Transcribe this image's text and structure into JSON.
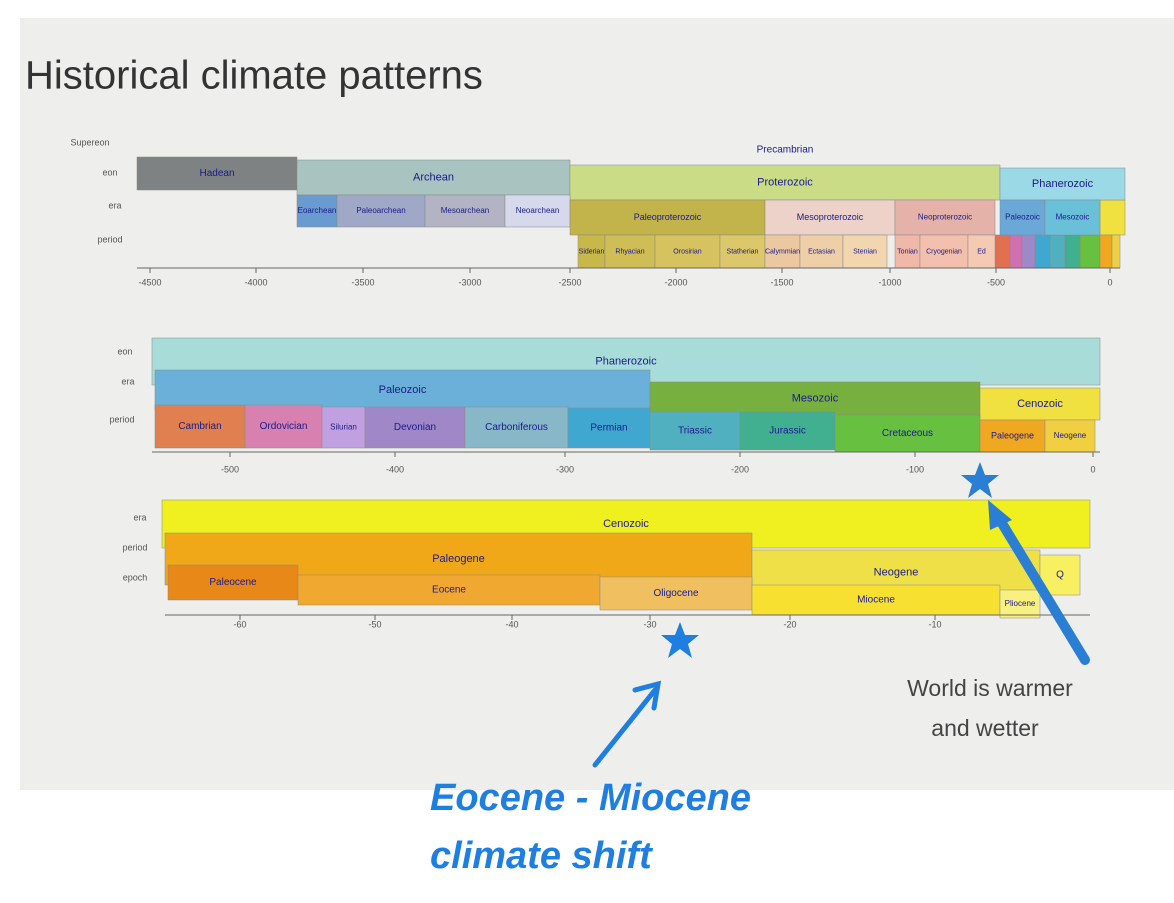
{
  "title": "Historical climate patterns",
  "timelines": [
    {
      "row_labels": [
        "Supereon",
        "eon",
        "era",
        "period"
      ],
      "segments": [
        "Precambrian",
        "Hadean",
        "Archean",
        "Proterozoic",
        "Phanerozoic",
        "Eoarchean",
        "Paleoarchean",
        "Mesoarchean",
        "Neoarchean",
        "Paleoproterozoic",
        "Mesoproterozoic",
        "Neoproterozoic",
        "Paleozoic",
        "Mesozoic",
        "Siderian",
        "Rhyacian",
        "Orosirian",
        "Statherian",
        "Calymmian",
        "Ectasian",
        "Stenian",
        "Tonian",
        "Cryogenian",
        "Ed"
      ],
      "ticks": [
        -4500,
        -4000,
        -3500,
        -3000,
        -2500,
        -2000,
        -1500,
        -1000,
        -500,
        0
      ]
    },
    {
      "row_labels": [
        "eon",
        "era",
        "period"
      ],
      "segments": [
        "Phanerozoic",
        "Paleozoic",
        "Mesozoic",
        "Cenozoic",
        "Cambrian",
        "Ordovician",
        "Silurian",
        "Devonian",
        "Carboniferous",
        "Permian",
        "Triassic",
        "Jurassic",
        "Cretaceous",
        "Paleogene",
        "Neogene"
      ],
      "ticks": [
        -500,
        -400,
        -300,
        -200,
        -100,
        0
      ]
    },
    {
      "row_labels": [
        "era",
        "period",
        "epoch"
      ],
      "segments": [
        "Cenozoic",
        "Paleogene",
        "Neogene",
        "Q",
        "Paleocene",
        "Eocene",
        "Oligocene",
        "Miocene",
        "Pliocene"
      ],
      "ticks": [
        -60,
        -50,
        -40,
        -30,
        -20,
        -10
      ]
    }
  ],
  "annotations": {
    "warm": [
      "World is warmer",
      "and wetter"
    ],
    "shift": [
      "Eocene - Miocene",
      "climate shift"
    ]
  }
}
